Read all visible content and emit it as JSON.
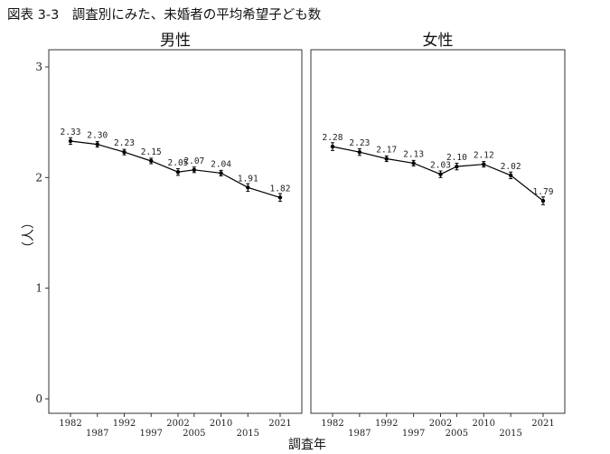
{
  "figure_title": "図表 3-3　調査別にみた、未婚者の平均希望子ども数",
  "chart_data": {
    "type": "line",
    "ylabel": "（人）",
    "xlabel": "調査年",
    "ylim": [
      0,
      3
    ],
    "y_ticks": [
      "0",
      "1",
      "2",
      "3"
    ],
    "x": [
      1982,
      1987,
      1992,
      1997,
      2002,
      2005,
      2010,
      2015,
      2021
    ],
    "x_tick_labels": [
      "1982",
      "1987",
      "1992",
      "1997",
      "2002",
      "2005",
      "2010",
      "2015",
      "2021"
    ],
    "grid": false,
    "error_bars": true,
    "panels": [
      {
        "title": "男性",
        "values": [
          2.33,
          2.3,
          2.23,
          2.15,
          2.05,
          2.07,
          2.04,
          1.91,
          1.82
        ],
        "labels": [
          "2.33",
          "2.30",
          "2.23",
          "2.15",
          "2.05",
          "2.07",
          "2.04",
          "1.91",
          "1.82"
        ],
        "error": [
          0.03,
          0.025,
          0.025,
          0.025,
          0.03,
          0.025,
          0.025,
          0.035,
          0.035
        ]
      },
      {
        "title": "女性",
        "values": [
          2.28,
          2.23,
          2.17,
          2.13,
          2.03,
          2.1,
          2.12,
          2.02,
          1.79
        ],
        "labels": [
          "2.28",
          "2.23",
          "2.17",
          "2.13",
          "2.03",
          "2.10",
          "2.12",
          "2.02",
          "1.79"
        ],
        "error": [
          0.035,
          0.03,
          0.025,
          0.025,
          0.03,
          0.03,
          0.025,
          0.03,
          0.035
        ]
      }
    ]
  }
}
